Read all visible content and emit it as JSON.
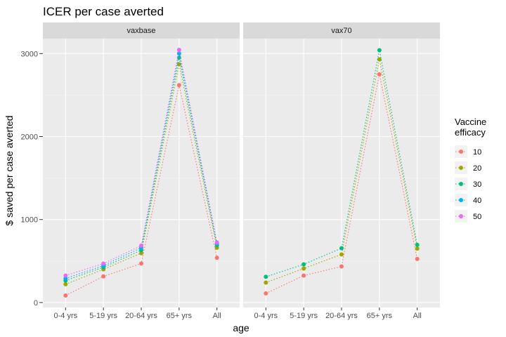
{
  "chart_data": {
    "type": "line",
    "title": "ICER per case averted",
    "xlabel": "age",
    "ylabel": "$ saved per case averted",
    "categories": [
      "0-4 yrs",
      "5-19 yrs",
      "20-64 yrs",
      "65+ yrs",
      "All"
    ],
    "ylim": [
      -60,
      3180
    ],
    "yticks": [
      0,
      1000,
      2000,
      3000
    ],
    "grid": true,
    "line_style": "dotted",
    "legend": {
      "title_lines": [
        "Vaccine",
        "efficacy"
      ],
      "position": "right"
    },
    "series_colors": {
      "10": "#F8766D",
      "20": "#A3A500",
      "30": "#00BF7D",
      "40": "#00B0F6",
      "50": "#E76BF3"
    },
    "series_names": [
      "10",
      "20",
      "30",
      "40",
      "50"
    ],
    "panels": [
      {
        "strip": "vaxbase",
        "series": [
          {
            "name": "10",
            "values": [
              85,
              315,
              470,
              2620,
              540
            ]
          },
          {
            "name": "20",
            "values": [
              220,
              400,
              595,
              2870,
              660
            ]
          },
          {
            "name": "30",
            "values": [
              265,
              425,
              630,
              2950,
              690
            ]
          },
          {
            "name": "40",
            "values": [
              290,
              445,
              660,
              3000,
              710
            ]
          },
          {
            "name": "50",
            "values": [
              325,
              470,
              685,
              3045,
              725
            ]
          }
        ]
      },
      {
        "strip": "vax70",
        "series": [
          {
            "name": "10",
            "values": [
              110,
              325,
              435,
              2750,
              525
            ]
          },
          {
            "name": "20",
            "values": [
              240,
              410,
              580,
              2930,
              650
            ]
          },
          {
            "name": "30",
            "values": [
              310,
              460,
              655,
              3040,
              695
            ]
          }
        ]
      }
    ]
  }
}
